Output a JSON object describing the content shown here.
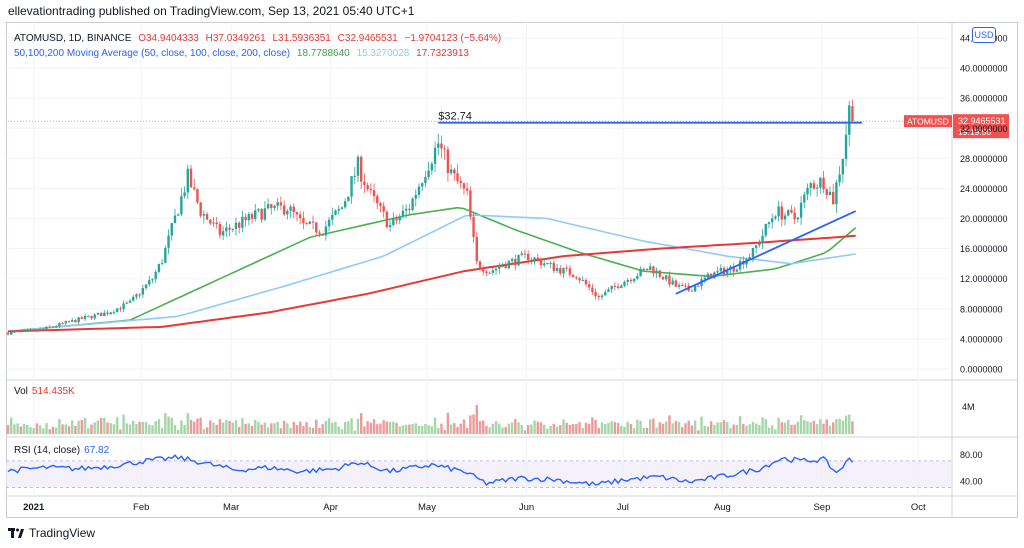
{
  "header": {
    "publisher_line": "ellevationtrading published on TradingView.com, Sep 13, 2021 05:40 UTC+1"
  },
  "legend": {
    "pair": "ATOMUSD, 1D, BINANCE",
    "open": "O34.9404333",
    "high": "H37.0349261",
    "low": "L31.5936351",
    "close": "C32.9465531",
    "change": "−1.9704123 (−5.64%)",
    "ma_label": "50,100,200 Moving Average (50, close, 100, close, 200, close)",
    "ma50_value": "18.7788640",
    "ma100_value": "15.3270028",
    "ma200_value": "17.7323913"
  },
  "currency": "USD",
  "price_tag": {
    "symbol": "ATOMUSD",
    "price": "32.9465531",
    "countdown": "19:19:50"
  },
  "resistance_label": "$32.74",
  "volume": {
    "label": "Vol",
    "value": "514.435K",
    "axis_label": "4M"
  },
  "rsi": {
    "label": "RSI (14, close)",
    "value": "67.82",
    "axis_labels": [
      "80.00",
      "40.00"
    ]
  },
  "footer": {
    "brand": "TradingView"
  },
  "colors": {
    "up": "#26a69a",
    "down": "#ef5350",
    "ma50": "#4caf50",
    "ma100": "#90caf9",
    "ma200": "#e53935",
    "line": "#2962ff",
    "rsi": "#2962ff"
  },
  "chart_data": {
    "type": "candlestick",
    "y_axis_labels": [
      "44.0000000",
      "40.0000000",
      "36.0000000",
      "32.0000000",
      "28.0000000",
      "24.0000000",
      "20.0000000",
      "16.0000000",
      "12.0000000",
      "8.0000000",
      "4.0000000",
      "0.0000000"
    ],
    "ylim": [
      0,
      44
    ],
    "x_axis_labels": [
      "2021",
      "Feb",
      "Mar",
      "Apr",
      "May",
      "Jun",
      "Jul",
      "Aug",
      "Sep",
      "Oct"
    ],
    "xlim": [
      "2021-01-01",
      "2021-10-14"
    ],
    "resistance_level": 32.74,
    "trendline": {
      "from": [
        "2021-07-20",
        10.0
      ],
      "to": [
        "2021-09-14",
        21.0
      ]
    },
    "price_path": [
      [
        "2020-12-24",
        4.8
      ],
      [
        "2021-01-03",
        5.2
      ],
      [
        "2021-01-10",
        6.0
      ],
      [
        "2021-01-17",
        6.8
      ],
      [
        "2021-01-24",
        7.5
      ],
      [
        "2021-01-31",
        8.8
      ],
      [
        "2021-02-07",
        12.0
      ],
      [
        "2021-02-10",
        14.5
      ],
      [
        "2021-02-14",
        20.0
      ],
      [
        "2021-02-18",
        25.5
      ],
      [
        "2021-02-22",
        21.0
      ],
      [
        "2021-02-28",
        18.0
      ],
      [
        "2021-03-07",
        19.5
      ],
      [
        "2021-03-14",
        21.0
      ],
      [
        "2021-03-21",
        21.5
      ],
      [
        "2021-03-26",
        19.0
      ],
      [
        "2021-04-01",
        18.5
      ],
      [
        "2021-04-07",
        21.5
      ],
      [
        "2021-04-12",
        27.0
      ],
      [
        "2021-04-16",
        23.0
      ],
      [
        "2021-04-22",
        19.0
      ],
      [
        "2021-04-28",
        21.5
      ],
      [
        "2021-05-03",
        26.5
      ],
      [
        "2021-05-07",
        30.0
      ],
      [
        "2021-05-11",
        26.0
      ],
      [
        "2021-05-16",
        23.0
      ],
      [
        "2021-05-19",
        14.0
      ],
      [
        "2021-05-23",
        13.0
      ],
      [
        "2021-05-28",
        14.0
      ],
      [
        "2021-06-04",
        15.0
      ],
      [
        "2021-06-12",
        13.5
      ],
      [
        "2021-06-19",
        12.5
      ],
      [
        "2021-06-26",
        9.5
      ],
      [
        "2021-07-03",
        11.5
      ],
      [
        "2021-07-12",
        13.5
      ],
      [
        "2021-07-20",
        11.0
      ],
      [
        "2021-07-24",
        10.5
      ],
      [
        "2021-07-31",
        12.5
      ],
      [
        "2021-08-07",
        13.5
      ],
      [
        "2021-08-13",
        15.5
      ],
      [
        "2021-08-20",
        21.0
      ],
      [
        "2021-08-26",
        20.0
      ],
      [
        "2021-08-31",
        24.5
      ],
      [
        "2021-09-04",
        25.0
      ],
      [
        "2021-09-07",
        22.5
      ],
      [
        "2021-09-10",
        28.5
      ],
      [
        "2021-09-12",
        34.5
      ],
      [
        "2021-09-13",
        32.95
      ]
    ],
    "series": [
      {
        "name": "MA 50",
        "points": [
          [
            "2020-12-24",
            5.0
          ],
          [
            "2021-01-31",
            6.5
          ],
          [
            "2021-02-28",
            12.0
          ],
          [
            "2021-03-28",
            17.5
          ],
          [
            "2021-04-28",
            20.5
          ],
          [
            "2021-05-14",
            21.5
          ],
          [
            "2021-05-31",
            18.5
          ],
          [
            "2021-06-20",
            15.5
          ],
          [
            "2021-07-10",
            13.0
          ],
          [
            "2021-07-31",
            12.3
          ],
          [
            "2021-08-20",
            13.3
          ],
          [
            "2021-09-05",
            15.5
          ],
          [
            "2021-09-14",
            18.8
          ]
        ]
      },
      {
        "name": "MA 100",
        "points": [
          [
            "2020-12-24",
            5.0
          ],
          [
            "2021-02-15",
            7.0
          ],
          [
            "2021-03-20",
            11.0
          ],
          [
            "2021-04-20",
            15.0
          ],
          [
            "2021-05-16",
            20.5
          ],
          [
            "2021-06-10",
            20.0
          ],
          [
            "2021-07-10",
            17.0
          ],
          [
            "2021-08-05",
            15.0
          ],
          [
            "2021-08-25",
            14.0
          ],
          [
            "2021-09-14",
            15.3
          ]
        ]
      },
      {
        "name": "MA 200",
        "points": [
          [
            "2020-12-24",
            5.0
          ],
          [
            "2021-02-10",
            5.6
          ],
          [
            "2021-03-15",
            7.5
          ],
          [
            "2021-04-15",
            10.0
          ],
          [
            "2021-05-15",
            13.0
          ],
          [
            "2021-06-15",
            15.0
          ],
          [
            "2021-07-15",
            16.0
          ],
          [
            "2021-08-15",
            16.8
          ],
          [
            "2021-09-14",
            17.7
          ]
        ]
      }
    ],
    "volume_bars": 0,
    "rsi_path": [
      [
        "2020-12-24",
        55
      ],
      [
        "2021-01-05",
        60
      ],
      [
        "2021-01-15",
        58
      ],
      [
        "2021-01-25",
        62
      ],
      [
        "2021-02-05",
        70
      ],
      [
        "2021-02-15",
        75
      ],
      [
        "2021-02-22",
        68
      ],
      [
        "2021-03-05",
        56
      ],
      [
        "2021-03-15",
        60
      ],
      [
        "2021-03-25",
        54
      ],
      [
        "2021-04-05",
        58
      ],
      [
        "2021-04-12",
        68
      ],
      [
        "2021-04-22",
        54
      ],
      [
        "2021-05-05",
        64
      ],
      [
        "2021-05-15",
        54
      ],
      [
        "2021-05-22",
        36
      ],
      [
        "2021-06-01",
        44
      ],
      [
        "2021-06-12",
        42
      ],
      [
        "2021-06-25",
        34
      ],
      [
        "2021-07-05",
        42
      ],
      [
        "2021-07-15",
        46
      ],
      [
        "2021-07-24",
        38
      ],
      [
        "2021-08-05",
        48
      ],
      [
        "2021-08-15",
        58
      ],
      [
        "2021-08-22",
        74
      ],
      [
        "2021-08-28",
        70
      ],
      [
        "2021-09-04",
        72
      ],
      [
        "2021-09-08",
        52
      ],
      [
        "2021-09-12",
        72
      ],
      [
        "2021-09-13",
        67.8
      ]
    ],
    "rsi_ylim": [
      20,
      100
    ]
  }
}
